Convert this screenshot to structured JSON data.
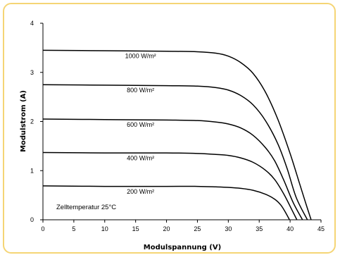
{
  "chart_data": {
    "type": "line",
    "xlabel": "Modulspannung (V)",
    "ylabel": "Modulstrom (A)",
    "xlim": [
      0,
      45
    ],
    "ylim": [
      0,
      4
    ],
    "x_ticks": [
      "0",
      "5",
      "10",
      "15",
      "20",
      "25",
      "30",
      "35",
      "40",
      "45"
    ],
    "y_ticks": [
      "0",
      "1",
      "2",
      "3",
      "4"
    ],
    "grid": false,
    "annotation": "Zelltemperatur 25°C",
    "series": [
      {
        "name": "1000 W/m²",
        "points": [
          [
            0,
            3.45
          ],
          [
            10,
            3.44
          ],
          [
            20,
            3.43
          ],
          [
            25,
            3.42
          ],
          [
            28,
            3.39
          ],
          [
            30,
            3.33
          ],
          [
            32,
            3.2
          ],
          [
            34,
            2.98
          ],
          [
            36,
            2.6
          ],
          [
            38,
            2.05
          ],
          [
            40,
            1.35
          ],
          [
            41.5,
            0.75
          ],
          [
            42.5,
            0.35
          ],
          [
            43.4,
            0.0
          ]
        ]
      },
      {
        "name": "800 W/m²",
        "points": [
          [
            0,
            2.75
          ],
          [
            10,
            2.74
          ],
          [
            20,
            2.73
          ],
          [
            25,
            2.72
          ],
          [
            28,
            2.69
          ],
          [
            30,
            2.64
          ],
          [
            32,
            2.53
          ],
          [
            34,
            2.34
          ],
          [
            36,
            2.02
          ],
          [
            38,
            1.55
          ],
          [
            39.5,
            1.05
          ],
          [
            41,
            0.45
          ],
          [
            42.8,
            0.0
          ]
        ]
      },
      {
        "name": "600 W/m²",
        "points": [
          [
            0,
            2.05
          ],
          [
            10,
            2.04
          ],
          [
            20,
            2.03
          ],
          [
            25,
            2.02
          ],
          [
            28,
            1.99
          ],
          [
            30,
            1.95
          ],
          [
            32,
            1.87
          ],
          [
            34,
            1.72
          ],
          [
            36,
            1.47
          ],
          [
            37.5,
            1.2
          ],
          [
            39,
            0.8
          ],
          [
            40.5,
            0.35
          ],
          [
            42.0,
            0.0
          ]
        ]
      },
      {
        "name": "400 W/m²",
        "points": [
          [
            0,
            1.37
          ],
          [
            10,
            1.36
          ],
          [
            20,
            1.36
          ],
          [
            25,
            1.35
          ],
          [
            28,
            1.33
          ],
          [
            30,
            1.31
          ],
          [
            32,
            1.26
          ],
          [
            34,
            1.17
          ],
          [
            36,
            1.01
          ],
          [
            37.5,
            0.82
          ],
          [
            39,
            0.52
          ],
          [
            40.3,
            0.2
          ],
          [
            41.1,
            0.0
          ]
        ]
      },
      {
        "name": "200 W/m²",
        "points": [
          [
            0,
            0.69
          ],
          [
            10,
            0.68
          ],
          [
            20,
            0.68
          ],
          [
            25,
            0.68
          ],
          [
            28,
            0.67
          ],
          [
            30,
            0.66
          ],
          [
            32,
            0.64
          ],
          [
            34,
            0.6
          ],
          [
            36,
            0.52
          ],
          [
            37.5,
            0.42
          ],
          [
            38.5,
            0.3
          ],
          [
            39.3,
            0.14
          ],
          [
            39.9,
            0.0
          ]
        ]
      }
    ],
    "colors": {
      "curve": "#000000",
      "axis": "#000000",
      "frame": "#f5d575"
    }
  }
}
